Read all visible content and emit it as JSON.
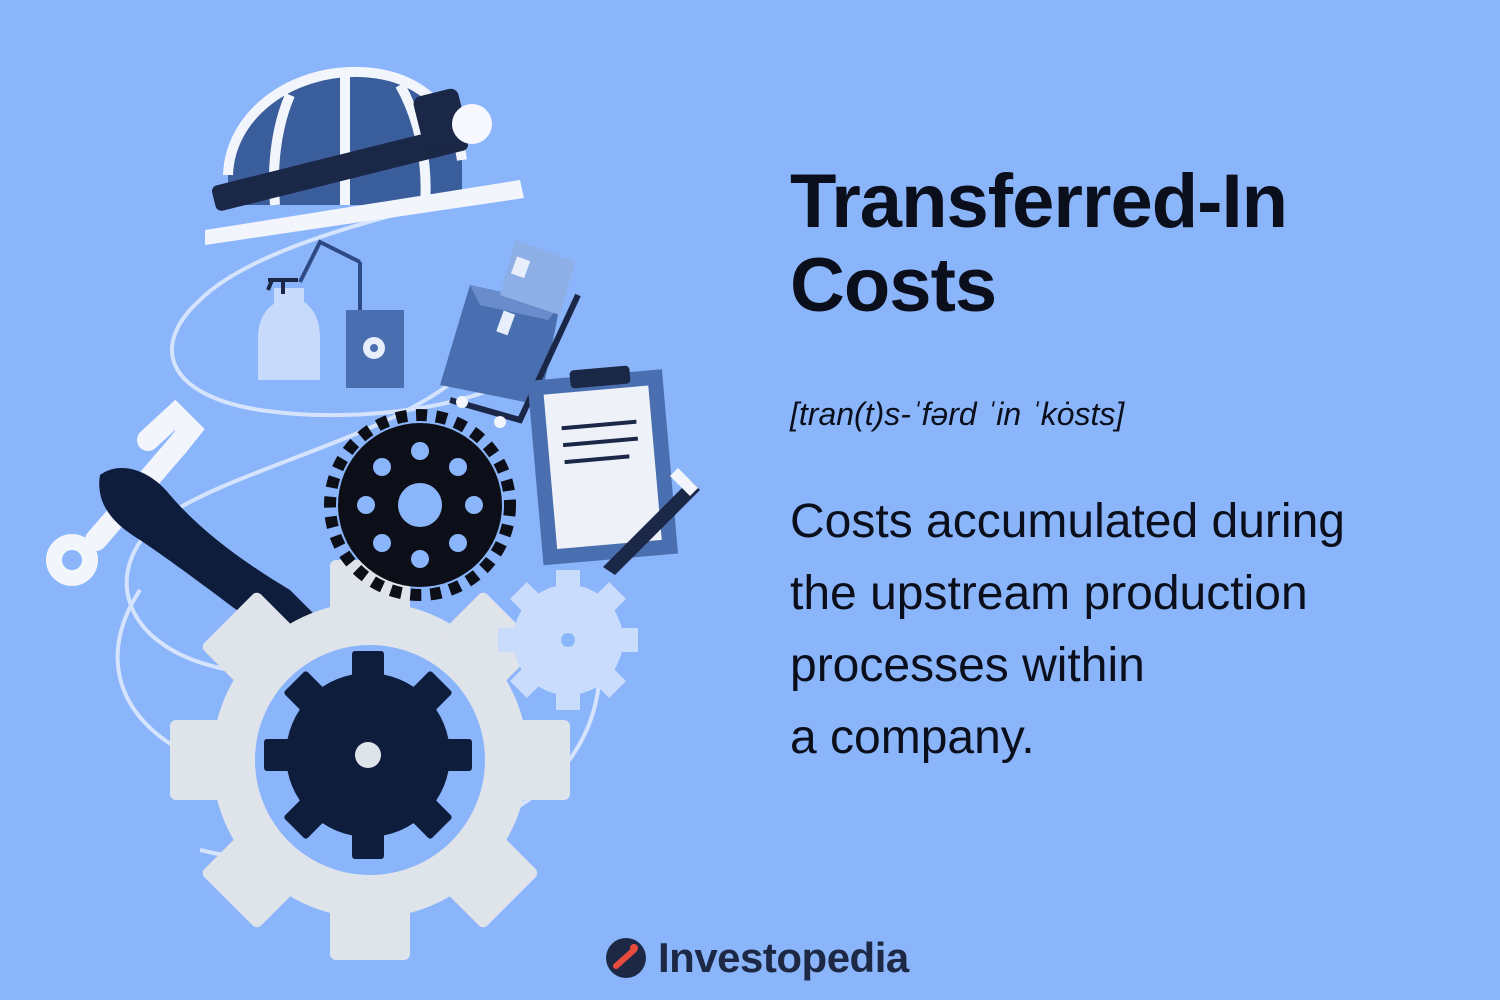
{
  "headline": {
    "line1": "Transferred-In",
    "line2": "Costs"
  },
  "pronunciation": "[tran(t)s-ˈfərd ˈin ˈkȯsts]",
  "definition": {
    "line1": "Costs accumulated during",
    "line2": "the upstream production",
    "line3": "processes within",
    "line4": "a company."
  },
  "brand": {
    "name": "Investopedia",
    "icon": "investopedia-logo-icon"
  },
  "colors": {
    "background": "#8bb5fb",
    "text": "#0b0f1c",
    "navy": "#0f1d3d",
    "mid_blue": "#4a6fb0",
    "light_blue": "#c9dcfc",
    "grey_gear": "#dfe3ea"
  },
  "illustration": [
    "hard-hat-icon",
    "spray-bottle-icon",
    "gear-tag-icon",
    "hand-truck-boxes-icon",
    "clipboard-icon",
    "pen-icon",
    "wrench-hand-icon",
    "black-gear-icon",
    "large-grey-gear-icon",
    "light-gear-icon",
    "conveyor-path"
  ]
}
